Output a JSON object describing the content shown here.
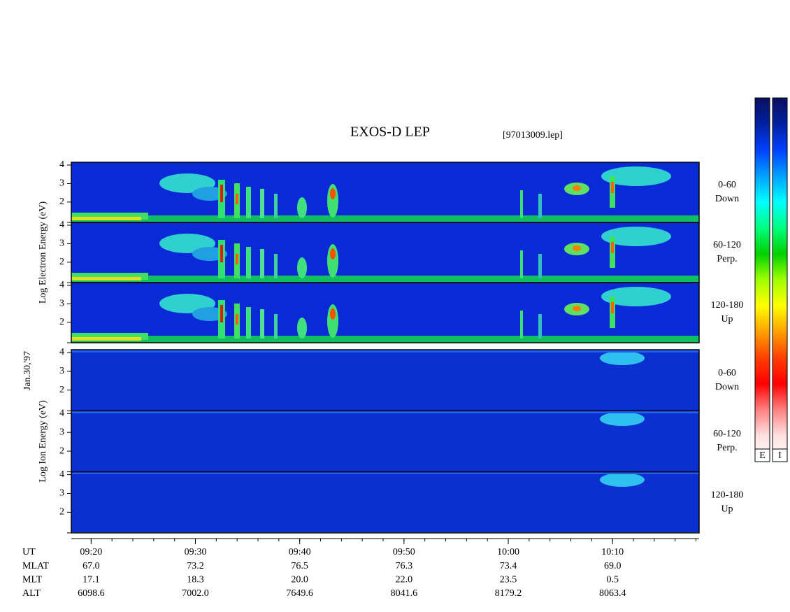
{
  "chart_data": {
    "type": "spectrogram",
    "title": "EXOS-D LEP",
    "subtitle": "[97013009.lep]",
    "date_label": "Jan.30,'97",
    "xlim": [
      558.1,
      618.3
    ],
    "xticks": [
      {
        "value": 560,
        "label": "09:20"
      },
      {
        "value": 570,
        "label": "09:30"
      },
      {
        "value": 580,
        "label": "09:40"
      },
      {
        "value": 590,
        "label": "09:50"
      },
      {
        "value": 600,
        "label": "10:00"
      },
      {
        "value": 610,
        "label": "10:10"
      }
    ],
    "xminor": 2,
    "x_row_label": "UT",
    "ephemeris": [
      {
        "name": "MLAT",
        "values": [
          "67.0",
          "73.2",
          "76.5",
          "76.3",
          "73.4",
          "69.0"
        ]
      },
      {
        "name": "MLT",
        "values": [
          "17.1",
          "18.3",
          "20.0",
          "22.0",
          "23.5",
          "0.5"
        ]
      },
      {
        "name": "ALT",
        "values": [
          "6098.6",
          "7002.0",
          "7649.6",
          "8041.6",
          "8179.2",
          "8063.4"
        ]
      }
    ],
    "groups": [
      {
        "ylabel": "Log Electron Energy (eV)",
        "species": "electron",
        "panels": [
          {
            "label": [
              "0-60",
              "Down"
            ],
            "ylim": [
              0.9,
              4.15
            ],
            "yticks": [
              2,
              3,
              4
            ]
          },
          {
            "label": [
              "60-120",
              "Perp."
            ],
            "ylim": [
              0.9,
              4.15
            ],
            "yticks": [
              2,
              3,
              4
            ]
          },
          {
            "label": [
              "120-180",
              "Up"
            ],
            "ylim": [
              0.9,
              4.15
            ],
            "yticks": [
              2,
              3,
              4
            ]
          }
        ]
      },
      {
        "ylabel": "Log Ion Energy (eV)",
        "species": "ion",
        "panels": [
          {
            "label": [
              "0-60",
              "Down"
            ],
            "ylim": [
              0.9,
              4.15
            ],
            "yticks": [
              2,
              3,
              4
            ]
          },
          {
            "label": [
              "60-120",
              "Perp."
            ],
            "ylim": [
              0.9,
              4.15
            ],
            "yticks": [
              2,
              3,
              4
            ]
          },
          {
            "label": [
              "120-180",
              "Up"
            ],
            "ylim": [
              0.9,
              4.15
            ],
            "yticks": [
              2,
              3,
              4
            ]
          }
        ]
      }
    ],
    "colorbars": [
      "E",
      "I"
    ],
    "colorscale": [
      "#0a1060",
      "#0020a0",
      "#0040ff",
      "#00a0ff",
      "#00ffff",
      "#00ff80",
      "#00d000",
      "#a0ff00",
      "#ffff00",
      "#ffa000",
      "#ff4000",
      "#ff0000",
      "#ff8080",
      "#ffe0e0",
      "#ffffff"
    ]
  }
}
